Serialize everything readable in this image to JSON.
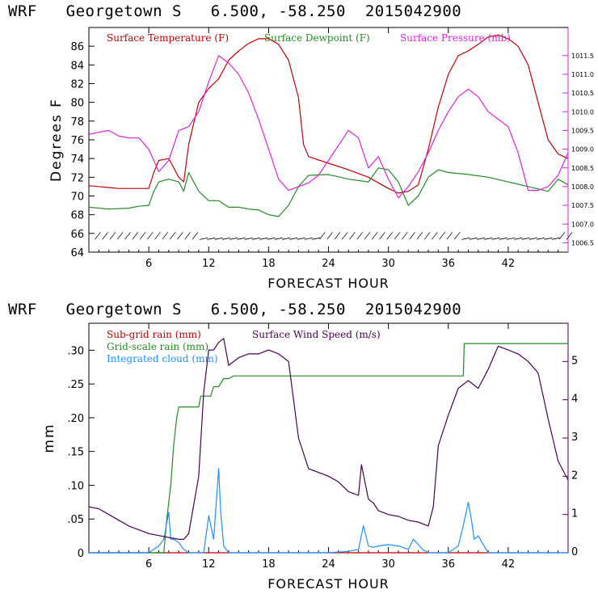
{
  "panel1": {
    "header": {
      "model": "WRF",
      "site": "Georgetown S",
      "coords": "6.500, -58.250",
      "run": "2015042900"
    }
  },
  "panel2": {
    "header": {
      "model": "WRF",
      "site": "Georgetown S",
      "coords": "6.500, -58.250",
      "run": "2015042900"
    }
  },
  "colors": {
    "temperature": "#c00000",
    "dewpoint": "#228b22",
    "pressure": "#e020e0",
    "subgrid_rain": "#c00000",
    "gridscale_rain": "#228b22",
    "cloud": "#1e90ff",
    "wind_speed": "#4b0050",
    "wind_barbs": "#000000"
  },
  "chart_data": [
    {
      "type": "line",
      "title": "",
      "xlabel": "FORECAST HOUR",
      "ylabel": "Degrees F",
      "ylabel_right": "",
      "xlim": [
        0,
        48
      ],
      "ylim": [
        64,
        88
      ],
      "ylim_right": [
        1006.25,
        1012.25
      ],
      "x_ticks": [
        6,
        12,
        18,
        24,
        30,
        36,
        42
      ],
      "y_ticks": [
        64,
        66,
        68,
        70,
        72,
        74,
        76,
        78,
        80,
        82,
        84,
        86
      ],
      "y_ticks_right": [
        "1006.5",
        "1007.0",
        "1007.5",
        "1008.0",
        "1008.5",
        "1009.0",
        "1009.5",
        "1010.0",
        "1010.5",
        "1011.0",
        "1011.5"
      ],
      "y_ticks_right_values": [
        1006.5,
        1007.0,
        1007.5,
        1008.0,
        1008.5,
        1009.0,
        1009.5,
        1010.0,
        1010.5,
        1011.0,
        1011.5
      ],
      "legend": [
        "Surface Temperature (F)",
        "Surface Dewpoint (F)",
        "Surface Pressure (mb)"
      ],
      "legend_position": "top",
      "grid": false,
      "wind_barbs": true,
      "series": [
        {
          "name": "Surface Temperature (F)",
          "axis": "left",
          "x": [
            0,
            3,
            6,
            6.5,
            7,
            8,
            9,
            9.5,
            10,
            11,
            12,
            13,
            14,
            15,
            16,
            17,
            18,
            19,
            20,
            21,
            21.5,
            22,
            24,
            26,
            28,
            30,
            31,
            32,
            33,
            34,
            35,
            36,
            37,
            38,
            39,
            40,
            41,
            42,
            43,
            44,
            45,
            46,
            47,
            48
          ],
          "y": [
            71.1,
            70.8,
            70.8,
            72.5,
            73.8,
            74.0,
            72.0,
            71.5,
            75.5,
            80.0,
            81.5,
            82.5,
            84.5,
            85.5,
            86.3,
            86.8,
            86.8,
            86.2,
            84.5,
            80.5,
            75.5,
            74.2,
            73.5,
            72.8,
            72.0,
            70.8,
            70.3,
            70.5,
            71.2,
            75.0,
            79.5,
            83.0,
            85.0,
            85.5,
            86.2,
            87.0,
            87.2,
            86.8,
            86.0,
            84.0,
            80.0,
            76.0,
            74.5,
            74.0
          ]
        },
        {
          "name": "Surface Dewpoint (F)",
          "axis": "left",
          "x": [
            0,
            2,
            4,
            5,
            6,
            6.5,
            7,
            8,
            9,
            9.5,
            10,
            11,
            12,
            13,
            14,
            15,
            16,
            17,
            18,
            19,
            20,
            21,
            22,
            24,
            26,
            28,
            29,
            30,
            31,
            32,
            33,
            34,
            35,
            36,
            38,
            40,
            42,
            44,
            46,
            47,
            48
          ],
          "y": [
            68.8,
            68.6,
            68.7,
            68.9,
            69.0,
            70.5,
            71.5,
            71.8,
            71.5,
            70.5,
            72.5,
            70.5,
            69.5,
            69.5,
            68.8,
            68.8,
            68.6,
            68.5,
            68.0,
            67.8,
            69.0,
            71.0,
            72.2,
            72.3,
            71.8,
            71.5,
            73.0,
            72.8,
            71.5,
            69.0,
            70.0,
            72.0,
            72.8,
            72.5,
            72.3,
            72.0,
            71.5,
            71.0,
            70.5,
            71.8,
            71.2
          ]
        },
        {
          "name": "Surface Pressure (mb)",
          "axis": "right",
          "x": [
            0,
            1,
            2,
            3,
            4,
            5,
            6,
            7,
            8,
            9,
            10,
            11,
            12,
            13,
            14,
            15,
            16,
            17,
            18,
            19,
            20,
            21,
            22,
            23,
            24,
            25,
            26,
            27,
            28,
            29,
            30,
            31,
            32,
            33,
            34,
            35,
            36,
            37,
            38,
            39,
            40,
            41,
            42,
            43,
            44,
            45,
            46,
            47,
            48
          ],
          "y": [
            1009.4,
            1009.45,
            1009.5,
            1009.35,
            1009.3,
            1009.3,
            1009.0,
            1008.4,
            1008.7,
            1009.5,
            1009.6,
            1010.0,
            1010.8,
            1011.5,
            1011.3,
            1011.0,
            1010.5,
            1009.8,
            1009.0,
            1008.2,
            1007.9,
            1008.0,
            1008.1,
            1008.3,
            1008.7,
            1009.1,
            1009.5,
            1009.3,
            1008.5,
            1008.8,
            1008.2,
            1007.7,
            1008.0,
            1008.4,
            1008.9,
            1009.5,
            1010.0,
            1010.4,
            1010.6,
            1010.4,
            1010.0,
            1009.8,
            1009.6,
            1008.9,
            1007.9,
            1007.9,
            1008.0,
            1008.3,
            1008.9
          ]
        }
      ]
    },
    {
      "type": "line",
      "title": "",
      "xlabel": "FORECAST HOUR",
      "ylabel": "mm",
      "ylabel_right": "",
      "xlim": [
        0,
        48
      ],
      "ylim": [
        0,
        0.34
      ],
      "ylim_right": [
        0,
        6
      ],
      "x_ticks": [
        6,
        12,
        18,
        24,
        30,
        36,
        42
      ],
      "y_ticks": [
        0,
        0.05,
        0.1,
        0.15,
        0.2,
        0.25,
        0.3
      ],
      "y_tick_labels": [
        "0",
        ".05",
        ".10",
        ".15",
        ".20",
        ".25",
        ".30"
      ],
      "y_ticks_right": [
        "0",
        "1",
        "2",
        "3",
        "4",
        "5"
      ],
      "y_ticks_right_values": [
        0,
        1,
        2,
        3,
        4,
        5
      ],
      "legend": [
        "Sub-grid rain (mm)",
        "Surface Wind Speed (m/s)",
        "Grid-scale rain (mm)",
        "Integrated cloud (mm)"
      ],
      "legend_position": "top-left",
      "grid": false,
      "series": [
        {
          "name": "Sub-grid rain (mm)",
          "axis": "left",
          "x": [
            0,
            48
          ],
          "y": [
            0,
            0
          ]
        },
        {
          "name": "Grid-scale rain (mm)",
          "axis": "left",
          "x": [
            0,
            7.5,
            7.8,
            8.2,
            8.5,
            8.8,
            9,
            11,
            11.2,
            12.2,
            12.5,
            13,
            13.5,
            14,
            14.5,
            15,
            37.5,
            37.6,
            48
          ],
          "y": [
            0,
            0,
            0.05,
            0.1,
            0.16,
            0.2,
            0.216,
            0.216,
            0.232,
            0.232,
            0.246,
            0.246,
            0.258,
            0.258,
            0.262,
            0.262,
            0.262,
            0.31,
            0.31
          ]
        },
        {
          "name": "Integrated cloud (mm)",
          "axis": "left",
          "x": [
            0,
            6,
            7,
            7.5,
            8,
            8.2,
            8.5,
            9,
            9.5,
            10,
            11.5,
            12,
            12.5,
            13,
            13.2,
            13.5,
            14,
            14.5,
            15,
            20,
            24,
            26,
            27,
            27.5,
            28,
            28.5,
            29,
            30,
            31,
            32,
            32.5,
            33,
            33.5,
            34,
            36,
            37,
            37.5,
            38,
            38.3,
            38.6,
            39,
            39.5,
            40,
            41,
            48
          ],
          "y": [
            0,
            0,
            0.01,
            0.02,
            0.06,
            0.02,
            0.02,
            0.015,
            0.005,
            0,
            0,
            0.055,
            0.02,
            0.125,
            0.06,
            0.01,
            0,
            0,
            0,
            0,
            0,
            0.002,
            0.005,
            0.04,
            0.01,
            0.008,
            0.01,
            0.012,
            0.01,
            0.005,
            0.02,
            0.012,
            0.004,
            0,
            0,
            0.01,
            0.04,
            0.075,
            0.05,
            0.02,
            0.025,
            0.012,
            0,
            0,
            0
          ]
        },
        {
          "name": "Surface Wind Speed (m/s)",
          "axis": "right",
          "x": [
            0,
            1,
            2,
            3,
            4,
            5,
            6,
            7,
            8,
            9,
            9.5,
            10,
            11,
            11.5,
            12,
            12.5,
            13,
            13.5,
            14,
            15,
            16,
            17,
            18,
            19,
            20,
            21,
            22,
            23,
            24,
            25,
            26,
            27,
            27.3,
            28,
            28.5,
            29,
            30,
            31,
            32,
            33,
            34,
            34.5,
            35,
            36,
            37,
            38,
            39,
            40,
            41,
            42,
            43,
            44,
            45,
            46,
            47,
            48
          ],
          "y": [
            1.2,
            1.15,
            1.0,
            0.85,
            0.7,
            0.6,
            0.5,
            0.45,
            0.4,
            0.35,
            0.35,
            0.5,
            2.0,
            4.2,
            5.3,
            5.3,
            5.5,
            5.6,
            4.9,
            5.1,
            5.2,
            5.2,
            5.3,
            5.2,
            5.0,
            3.0,
            2.2,
            2.1,
            2.0,
            1.85,
            1.6,
            1.5,
            2.3,
            1.4,
            1.3,
            1.1,
            1.0,
            0.95,
            0.85,
            0.8,
            0.7,
            1.2,
            2.8,
            3.6,
            4.3,
            4.5,
            4.3,
            4.8,
            5.4,
            5.3,
            5.2,
            5.0,
            4.7,
            3.5,
            2.4,
            1.9
          ]
        }
      ]
    }
  ]
}
